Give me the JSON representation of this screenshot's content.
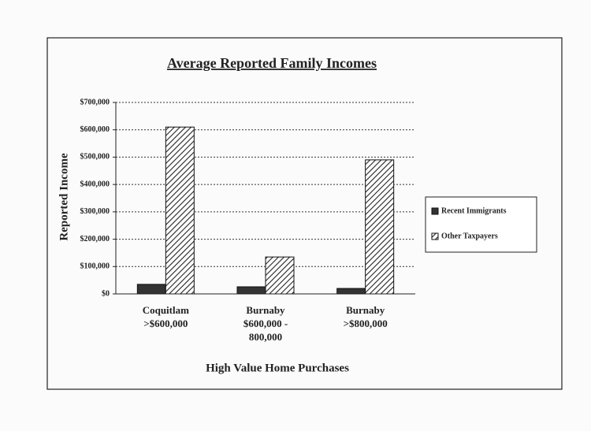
{
  "chart_data": {
    "type": "bar",
    "title": "Average Reported Family Incomes",
    "x_label": "High Value Home Purchases",
    "y_label": "Reported Income",
    "categories": [
      "Coquitlam\n>$600,000",
      "Burnaby\n$600,000 -\n800,000",
      "Burnaby\n>$800,000"
    ],
    "series": [
      {
        "name": "Recent Immigrants",
        "color": "#333333",
        "hatch": false,
        "values": [
          35000,
          26000,
          20000
        ]
      },
      {
        "name": "Other Taxpayers",
        "color": "#222222",
        "hatch": true,
        "values": [
          610000,
          135000,
          490000
        ]
      }
    ],
    "ylim": [
      0,
      700000
    ],
    "yticks": [
      {
        "value": 0,
        "label": "$0"
      },
      {
        "value": 100000,
        "label": "$100,000"
      },
      {
        "value": 200000,
        "label": "$200,000"
      },
      {
        "value": 300000,
        "label": "$300,000"
      },
      {
        "value": 400000,
        "label": "$400,000"
      },
      {
        "value": 500000,
        "label": "$500,000"
      },
      {
        "value": 600000,
        "label": "$600,000"
      },
      {
        "value": 700000,
        "label": "$700,000"
      }
    ],
    "grid": true,
    "legend": "right"
  }
}
